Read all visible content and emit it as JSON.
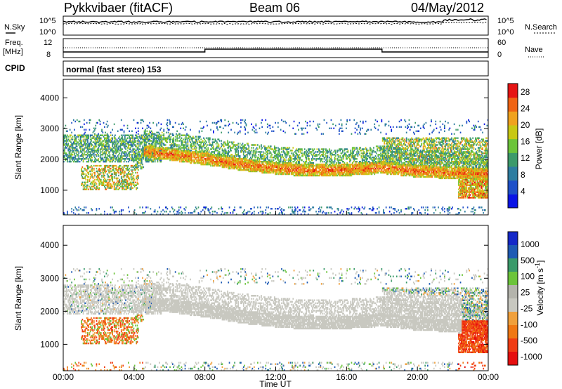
{
  "header": {
    "title": "Pykkvibaer (fitACF)",
    "beam": "Beam 06",
    "date": "04/May/2012"
  },
  "status_panels": {
    "nsky_label": "N.Sky",
    "nsearch_label": "N.Search",
    "noise_ticks_left": [
      "10^5",
      "10^0"
    ],
    "noise_ticks_right": [
      "10^5",
      "10^0"
    ],
    "freq_label": "Freq.",
    "freq_unit": "[MHz]",
    "freq_ticks": [
      "12",
      "8"
    ],
    "nave_label": "Nave",
    "nave_ticks": [
      "60",
      "0"
    ],
    "cpid_label": "CPID",
    "cpid_text": "normal (fast stereo) 153"
  },
  "colors": {
    "power_scale": [
      "#0a14e6",
      "#1e50c8",
      "#2e7da0",
      "#3c9a6a",
      "#6cc43a",
      "#c8c814",
      "#f0a21e",
      "#f06414",
      "#e61414"
    ],
    "velocity_scale": [
      "#e60f0f",
      "#f03c14",
      "#f07814",
      "#f0a03c",
      "#c8c8c0",
      "#b4b4ac",
      "#6cc43a",
      "#3a9a6a",
      "#1e5ab4",
      "#1428c8"
    ],
    "gray_scatter": "#c8c8c0"
  },
  "chart_data": [
    {
      "type": "heatmap",
      "title": "",
      "xlabel": "Time UT",
      "ylabel": "Slant Range [km]",
      "xlim": [
        "00:00",
        "00:00"
      ],
      "xticks": [
        "00:00",
        "04:00",
        "08:00",
        "12:00",
        "16:00",
        "20:00",
        "00:00"
      ],
      "ylim": [
        200,
        4600
      ],
      "yticks": [
        "1000",
        "2000",
        "3000",
        "4000"
      ],
      "colorbar_label": "Power [dB]",
      "colorbar_ticks": [
        "4",
        "8",
        "12",
        "16",
        "20",
        "24",
        "28"
      ],
      "colorbar_range": [
        0,
        30
      ],
      "echo_bands": [
        {
          "t_start": 0.0,
          "t_end": 5.5,
          "range_center": 2350,
          "width": 550,
          "power": 12
        },
        {
          "t_start": 4.5,
          "t_end": 24.0,
          "range_center_profile": [
            [
              4.5,
              2250
            ],
            [
              6,
              2150
            ],
            [
              8,
              2000
            ],
            [
              10,
              1820
            ],
            [
              12,
              1700
            ],
            [
              14,
              1620
            ],
            [
              16,
              1650
            ],
            [
              18,
              1720
            ],
            [
              20,
              1600
            ],
            [
              22,
              1550
            ],
            [
              24,
              1500
            ]
          ],
          "width": 350,
          "power": 26
        },
        {
          "t_start": 1.0,
          "t_end": 4.0,
          "range_center": 1300,
          "width": 500,
          "power": 22
        },
        {
          "t_start": 22.5,
          "t_end": 24.0,
          "range_center": 1200,
          "width": 500,
          "power": 26
        }
      ]
    },
    {
      "type": "heatmap",
      "title": "",
      "xlabel": "Time UT",
      "ylabel": "Slant Range [km]",
      "xlim": [
        "00:00",
        "00:00"
      ],
      "xticks": [
        "00:00",
        "04:00",
        "08:00",
        "12:00",
        "16:00",
        "20:00",
        "00:00"
      ],
      "ylim": [
        200,
        4600
      ],
      "yticks": [
        "1000",
        "2000",
        "3000",
        "4000"
      ],
      "colorbar_label": "Velocity [m s^-1]",
      "colorbar_ticks": [
        "1000",
        "500",
        "100",
        "25",
        "-25",
        "-100",
        "-500",
        "-1000"
      ],
      "notes": "ground scatter shown as gray (|v| < 25 m/s)"
    }
  ]
}
